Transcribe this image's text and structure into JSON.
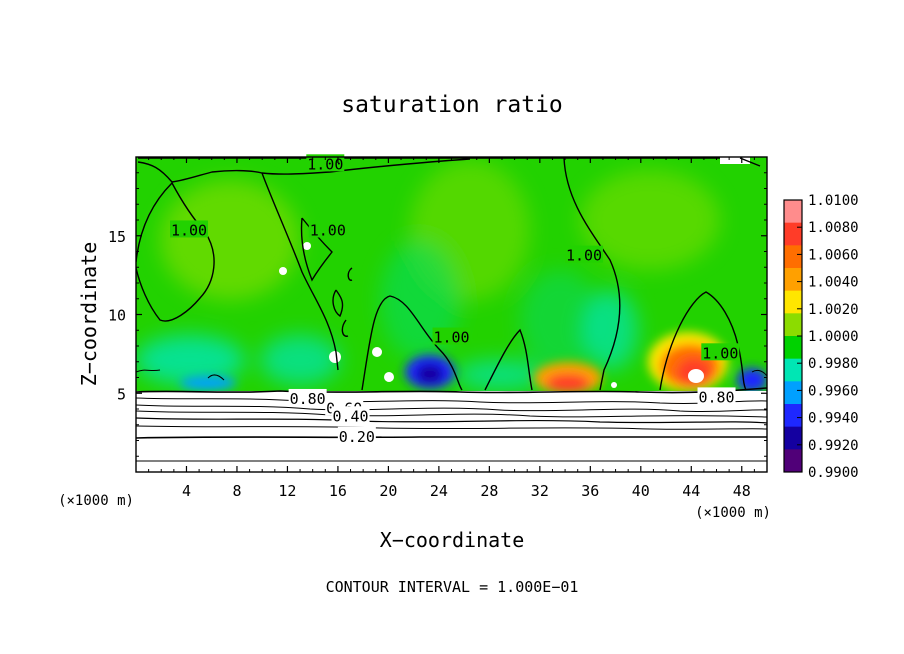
{
  "chart_data": {
    "type": "heatmap",
    "title": "saturation ratio",
    "xlabel": "X−coordinate",
    "ylabel": "Z−coordinate",
    "x_unit_left": "(×1000 m)",
    "x_unit_right": "(×1000 m)",
    "footer": "CONTOUR INTERVAL = 1.000E−01",
    "xlim": [
      0,
      50
    ],
    "ylim": [
      0,
      20
    ],
    "x_ticks": [
      4,
      8,
      12,
      16,
      20,
      24,
      28,
      32,
      36,
      40,
      44,
      48
    ],
    "x_tick_labels": [
      "4",
      "8",
      "12",
      "16",
      "20",
      "24",
      "28",
      "32",
      "36",
      "40",
      "44",
      "48"
    ],
    "y_ticks": [
      5,
      10,
      15
    ],
    "y_tick_labels": [
      "5",
      "10",
      "15"
    ],
    "colorbar": {
      "labels": [
        "1.0100",
        "1.0080",
        "1.0060",
        "1.0040",
        "1.0020",
        "1.0000",
        "0.9980",
        "0.9960",
        "0.9940",
        "0.9920",
        "0.9900"
      ],
      "values": [
        1.01,
        1.008,
        1.006,
        1.004,
        1.002,
        1.0,
        0.998,
        0.996,
        0.994,
        0.992,
        0.99
      ],
      "colors": [
        "#ff8c8c",
        "#ff3c28",
        "#ff6e00",
        "#ffa000",
        "#ffe600",
        "#8cdc00",
        "#00d200",
        "#00e6b4",
        "#00a0ff",
        "#1e28ff",
        "#1400a0",
        "#500078"
      ]
    },
    "contour_labels": [
      {
        "text": "1.00",
        "x": 15.0,
        "y": 19.6
      },
      {
        "text": "1.00",
        "x": 4.2,
        "y": 15.4
      },
      {
        "text": "1.00",
        "x": 15.2,
        "y": 15.4
      },
      {
        "text": "1.00",
        "x": 25.0,
        "y": 8.6
      },
      {
        "text": "1.00",
        "x": 35.5,
        "y": 13.8
      },
      {
        "text": "1.00",
        "x": 46.3,
        "y": 7.6
      },
      {
        "text": "0.80",
        "x": 13.6,
        "y": 4.7
      },
      {
        "text": "0.80",
        "x": 46.0,
        "y": 4.8
      },
      {
        "text": "0.60",
        "x": 16.5,
        "y": 4.1
      },
      {
        "text": "0.40",
        "x": 17.0,
        "y": 3.6
      },
      {
        "text": "0.20",
        "x": 17.5,
        "y": 2.3
      }
    ]
  }
}
